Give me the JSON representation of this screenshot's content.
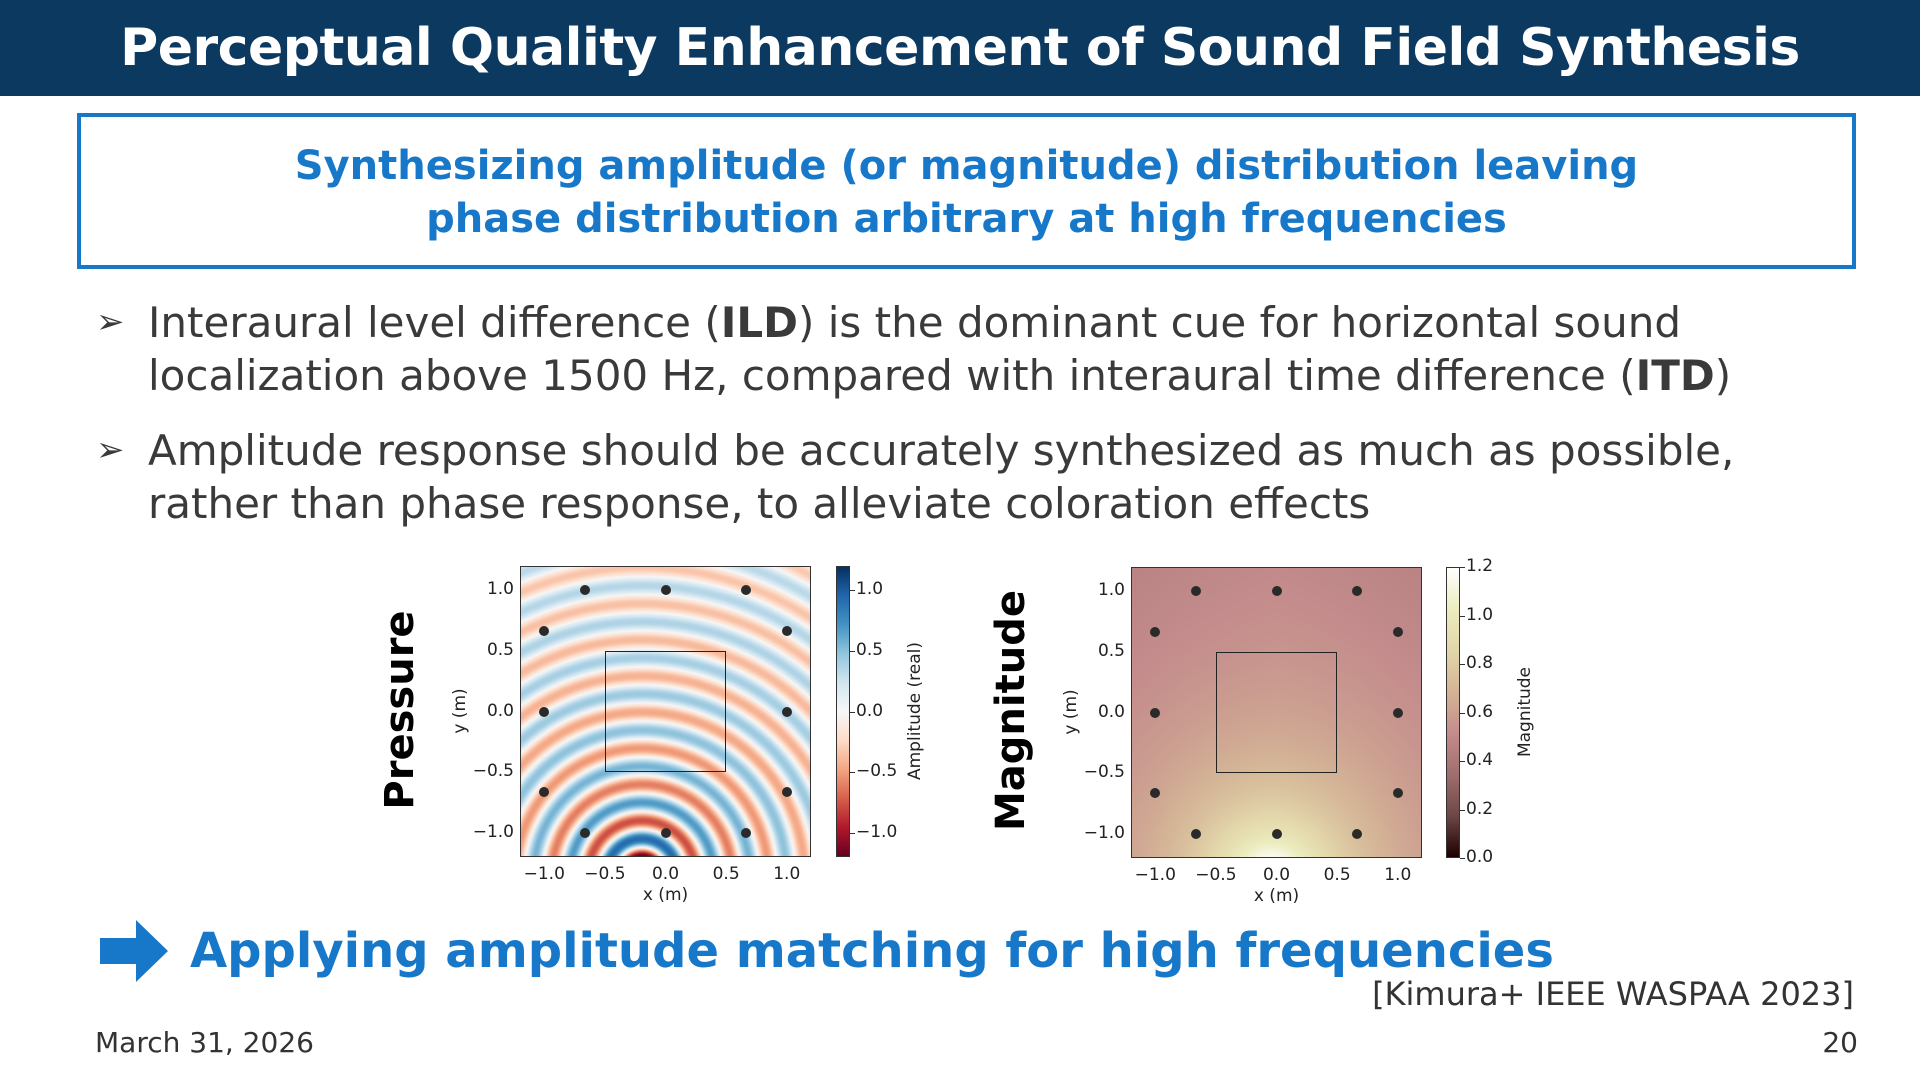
{
  "title": "Perceptual Quality Enhancement of Sound Field Synthesis",
  "key_message": {
    "line1": "Synthesizing amplitude (or magnitude) distribution leaving",
    "line2": "phase distribution arbitrary at high frequencies"
  },
  "bullets": [
    {
      "marker": "➢",
      "segments": [
        {
          "text": "Interaural level difference (",
          "bold": false
        },
        {
          "text": "ILD",
          "bold": true
        },
        {
          "text": ") is the dominant cue for horizontal sound localization above 1500 Hz, compared with interaural time difference (",
          "bold": false
        },
        {
          "text": "ITD",
          "bold": true
        },
        {
          "text": ")",
          "bold": false
        }
      ]
    },
    {
      "marker": "➢",
      "segments": [
        {
          "text": "Amplitude response should be accurately synthesized as much as possible, rather than phase response, to alleviate coloration effects",
          "bold": false
        }
      ]
    }
  ],
  "chart_data": [
    {
      "type": "heatmap",
      "title": "Pressure",
      "xlabel": "x (m)",
      "ylabel": "y (m)",
      "xlim": [
        -1.2,
        1.2
      ],
      "ylim": [
        -1.2,
        1.2
      ],
      "xticks": [
        "−1.0",
        "−0.5",
        "0.0",
        "0.5",
        "1.0"
      ],
      "yticks": [
        "1.0",
        "0.5",
        "0.0",
        "−0.5",
        "−1.0"
      ],
      "colorbar": {
        "label": "Amplitude (real)",
        "range": [
          -1.2,
          1.2
        ],
        "ticks": [
          "1.0",
          "0.5",
          "0.0",
          "−0.5",
          "−1.0"
        ],
        "colormap": "RdBu"
      },
      "target_region": [
        [
          -0.5,
          -0.5
        ],
        [
          0.5,
          0.5
        ]
      ],
      "source": [
        -0.2,
        -1.35
      ],
      "wavelength": 0.3
    },
    {
      "type": "heatmap",
      "title": "Magnitude",
      "xlabel": "x (m)",
      "ylabel": "y (m)",
      "xlim": [
        -1.2,
        1.2
      ],
      "ylim": [
        -1.2,
        1.2
      ],
      "xticks": [
        "−1.0",
        "−0.5",
        "0.0",
        "0.5",
        "1.0"
      ],
      "yticks": [
        "1.0",
        "0.5",
        "0.0",
        "−0.5",
        "−1.0"
      ],
      "colorbar": {
        "label": "Magnitude",
        "range": [
          0.0,
          1.2
        ],
        "ticks": [
          "1.2",
          "1.0",
          "0.8",
          "0.6",
          "0.4",
          "0.2",
          "0.0"
        ],
        "colormap": "pink"
      },
      "target_region": [
        [
          -0.5,
          -0.5
        ],
        [
          0.5,
          0.5
        ]
      ],
      "source": [
        -0.05,
        -1.4
      ]
    }
  ],
  "loudspeakers": [
    [
      -0.667,
      1
    ],
    [
      0,
      1
    ],
    [
      0.667,
      1
    ],
    [
      -1,
      0.667
    ],
    [
      1,
      0.667
    ],
    [
      -1,
      0
    ],
    [
      1,
      0
    ],
    [
      -1,
      -0.667
    ],
    [
      1,
      -0.667
    ],
    [
      -0.667,
      -1
    ],
    [
      0,
      -1
    ],
    [
      0.667,
      -1
    ]
  ],
  "conclusion": "Applying amplitude matching for high frequencies",
  "reference": "[Kimura+ IEEE WASPAA 2023]",
  "date": "March 31, 2026",
  "page_number": "20",
  "colors": {
    "title_bg": "#0b3960",
    "accent": "#1778c9"
  }
}
